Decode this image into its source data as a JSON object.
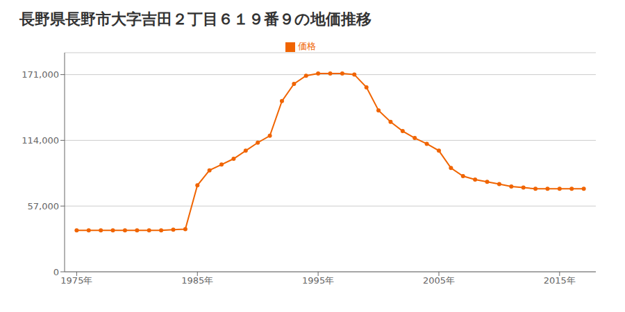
{
  "chart_data": {
    "type": "line",
    "title": "長野県長野市大字吉田２丁目６１９番９の地価推移",
    "x": [
      1975,
      1976,
      1977,
      1978,
      1979,
      1980,
      1981,
      1982,
      1983,
      1984,
      1985,
      1986,
      1987,
      1988,
      1989,
      1990,
      1991,
      1992,
      1993,
      1994,
      1995,
      1996,
      1997,
      1998,
      1999,
      2000,
      2001,
      2002,
      2003,
      2004,
      2005,
      2006,
      2007,
      2008,
      2009,
      2010,
      2011,
      2012,
      2013,
      2014,
      2015,
      2016,
      2017
    ],
    "series": [
      {
        "name": "価格",
        "color": "#f06400",
        "marker": "circle",
        "values": [
          36000,
          36000,
          36000,
          36000,
          36000,
          36000,
          36000,
          36000,
          36500,
          37000,
          75000,
          88000,
          93000,
          98000,
          105000,
          112000,
          118000,
          148000,
          163000,
          170000,
          172000,
          172000,
          172000,
          171000,
          160000,
          140000,
          130000,
          122000,
          116000,
          111000,
          105000,
          90000,
          83000,
          80000,
          78000,
          76000,
          74000,
          73000,
          72000,
          72000,
          72000,
          72000,
          72000
        ]
      }
    ],
    "xlim": [
      1974,
      2018
    ],
    "xticks": [
      {
        "value": 1975,
        "label": "1975年"
      },
      {
        "value": 1985,
        "label": "1985年"
      },
      {
        "value": 1995,
        "label": "1995年"
      },
      {
        "value": 2005,
        "label": "2005年"
      },
      {
        "value": 2015,
        "label": "2015年"
      }
    ],
    "ylim": [
      0,
      190000
    ],
    "yticks": [
      0,
      {
        "value": 57000,
        "label": "57,000"
      },
      {
        "value": 114000,
        "label": "114,000"
      },
      {
        "value": 171000,
        "label": "171,000"
      }
    ],
    "grid": true,
    "legend": "top"
  }
}
